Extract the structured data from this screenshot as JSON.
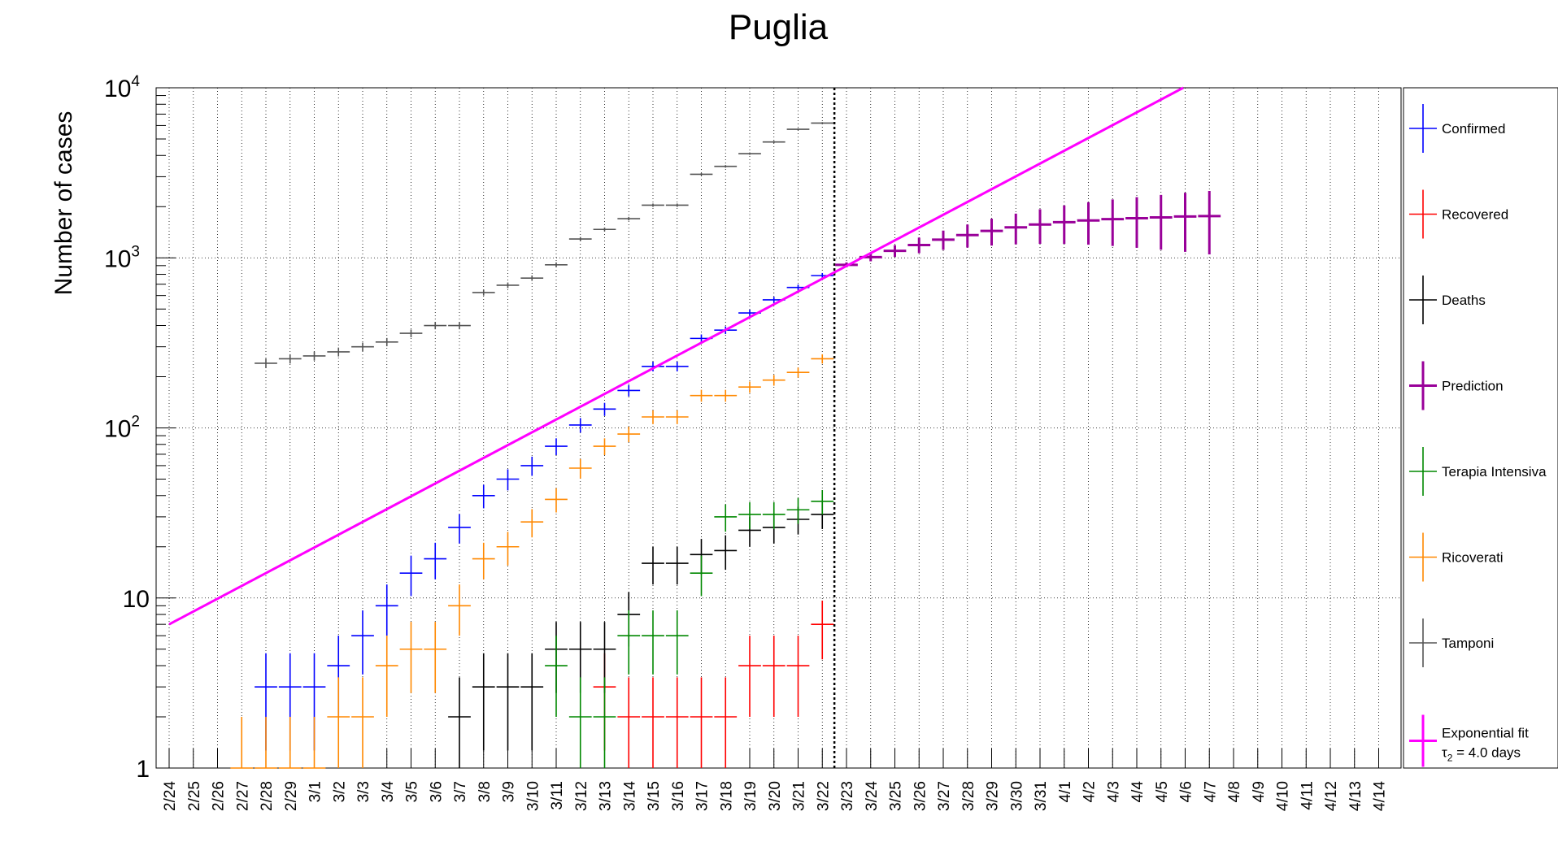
{
  "chart_data": {
    "type": "scatter",
    "title": "Puglia",
    "ylabel": "Number of cases",
    "xlabel": "",
    "yscale": "log",
    "ylim": [
      1,
      10000
    ],
    "ytick_labels": [
      {
        "value": 1,
        "base": "1",
        "exp": ""
      },
      {
        "value": 10,
        "base": "10",
        "exp": ""
      },
      {
        "value": 100,
        "base": "10",
        "exp": "2"
      },
      {
        "value": 1000,
        "base": "10",
        "exp": "3"
      },
      {
        "value": 10000,
        "base": "10",
        "exp": "4"
      }
    ],
    "categories": [
      "2/24",
      "2/25",
      "2/26",
      "2/27",
      "2/28",
      "2/29",
      "3/1",
      "3/2",
      "3/3",
      "3/4",
      "3/5",
      "3/6",
      "3/7",
      "3/8",
      "3/9",
      "3/10",
      "3/11",
      "3/12",
      "3/13",
      "3/14",
      "3/15",
      "3/16",
      "3/17",
      "3/18",
      "3/19",
      "3/20",
      "3/21",
      "3/22",
      "3/23",
      "3/24",
      "3/25",
      "3/26",
      "3/27",
      "3/28",
      "3/29",
      "3/30",
      "3/31",
      "4/1",
      "4/2",
      "4/3",
      "4/4",
      "4/5",
      "4/6",
      "4/7",
      "4/8",
      "4/9",
      "4/10",
      "4/11",
      "4/12",
      "4/13",
      "4/14"
    ],
    "grid": true,
    "legend_position": "right",
    "vertical_marker_at": "3/22",
    "series": [
      {
        "name": "Confirmed",
        "color": "#0000ff",
        "x": [
          "2/28",
          "2/29",
          "3/1",
          "3/2",
          "3/3",
          "3/4",
          "3/5",
          "3/6",
          "3/7",
          "3/8",
          "3/9",
          "3/10",
          "3/11",
          "3/12",
          "3/13",
          "3/14",
          "3/15",
          "3/16",
          "3/17",
          "3/18",
          "3/19",
          "3/20",
          "3/21",
          "3/22"
        ],
        "values": [
          3,
          3,
          3,
          4,
          6,
          9,
          14,
          17,
          26,
          40,
          50,
          60,
          78,
          104,
          129,
          166,
          230,
          230,
          336,
          376,
          474,
          566,
          670,
          786
        ]
      },
      {
        "name": "Recovered",
        "color": "#ff0000",
        "x": [
          "3/13",
          "3/14",
          "3/15",
          "3/16",
          "3/17",
          "3/18",
          "3/19",
          "3/20",
          "3/21",
          "3/22"
        ],
        "values": [
          3,
          2,
          2,
          2,
          2,
          2,
          4,
          4,
          4,
          7
        ]
      },
      {
        "name": "Deaths",
        "color": "#000000",
        "x": [
          "3/7",
          "3/8",
          "3/9",
          "3/10",
          "3/11",
          "3/12",
          "3/13",
          "3/14",
          "3/15",
          "3/16",
          "3/17",
          "3/18",
          "3/19",
          "3/20",
          "3/21",
          "3/22"
        ],
        "values": [
          2,
          3,
          3,
          3,
          5,
          5,
          5,
          8,
          16,
          16,
          18,
          19,
          25,
          26,
          29,
          31
        ]
      },
      {
        "name": "Prediction",
        "color": "#990099",
        "x": [
          "3/23",
          "3/24",
          "3/25",
          "3/26",
          "3/27",
          "3/28",
          "3/29",
          "3/30",
          "3/31",
          "4/1",
          "4/2",
          "4/3",
          "4/4",
          "4/5",
          "4/6",
          "4/7"
        ],
        "values": [
          910,
          1010,
          1100,
          1190,
          1280,
          1360,
          1440,
          1510,
          1570,
          1620,
          1660,
          1690,
          1710,
          1730,
          1750,
          1760
        ]
      },
      {
        "name": "Terapia Intensiva",
        "color": "#008800",
        "x": [
          "3/11",
          "3/12",
          "3/13",
          "3/14",
          "3/15",
          "3/16",
          "3/17",
          "3/18",
          "3/19",
          "3/20",
          "3/21",
          "3/22"
        ],
        "values": [
          4,
          2,
          2,
          6,
          6,
          6,
          14,
          30,
          31,
          31,
          33,
          37
        ]
      },
      {
        "name": "Ricoverati",
        "color": "#ff8800",
        "x": [
          "2/27",
          "2/28",
          "2/29",
          "3/1",
          "3/2",
          "3/3",
          "3/4",
          "3/5",
          "3/6",
          "3/7",
          "3/8",
          "3/9",
          "3/10",
          "3/11",
          "3/12",
          "3/13",
          "3/14",
          "3/15",
          "3/16",
          "3/17",
          "3/18",
          "3/19",
          "3/20",
          "3/21",
          "3/22"
        ],
        "values": [
          1,
          1,
          1,
          1,
          2,
          2,
          4,
          5,
          5,
          9,
          17,
          20,
          28,
          38,
          58,
          78,
          92,
          116,
          116,
          155,
          155,
          174,
          191,
          212,
          255
        ]
      },
      {
        "name": "Tamponi",
        "color": "#555555",
        "x": [
          "2/28",
          "2/29",
          "3/1",
          "3/2",
          "3/3",
          "3/4",
          "3/5",
          "3/6",
          "3/7",
          "3/8",
          "3/9",
          "3/10",
          "3/11",
          "3/12",
          "3/13",
          "3/14",
          "3/15",
          "3/16",
          "3/17",
          "3/18",
          "3/19",
          "3/20",
          "3/21",
          "3/22"
        ],
        "values": [
          240,
          255,
          265,
          280,
          300,
          320,
          360,
          400,
          400,
          625,
          690,
          760,
          910,
          1290,
          1470,
          1700,
          2040,
          2040,
          3100,
          3450,
          4100,
          4800,
          5700,
          6200
        ]
      }
    ],
    "fit": {
      "name": "Exponential fit",
      "label_line2": "τ₂ = 4.0 days",
      "label_tau": "τ",
      "label_tau_sub": "2",
      "label_rest": " = 4.0 days",
      "color": "#ff00ff",
      "start": {
        "x": "2/24",
        "y": 7
      },
      "doubling_days": 4.0
    }
  },
  "legend": {
    "items": [
      {
        "label": "Confirmed",
        "color": "#0000ff"
      },
      {
        "label": "Recovered",
        "color": "#ff0000"
      },
      {
        "label": "Deaths",
        "color": "#000000"
      },
      {
        "label": "Prediction",
        "color": "#990099"
      },
      {
        "label": "Terapia Intensiva",
        "color": "#008800"
      },
      {
        "label": "Ricoverati",
        "color": "#ff8800"
      },
      {
        "label": "Tamponi",
        "color": "#555555"
      }
    ]
  }
}
